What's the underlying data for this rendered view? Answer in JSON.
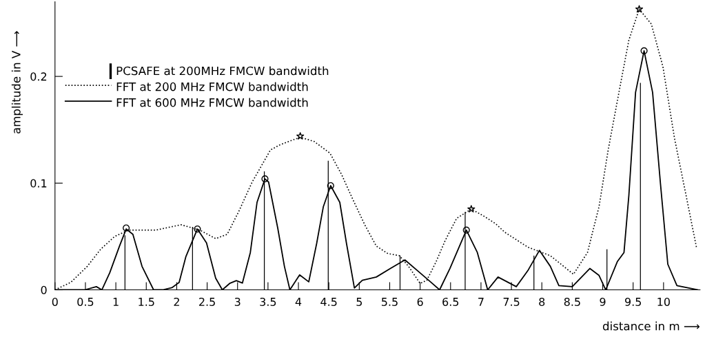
{
  "chart_data": {
    "type": "line",
    "xlabel": "distance in m ⟶",
    "ylabel": "amplitude in V ⟶",
    "xlim": [
      0,
      10.6
    ],
    "ylim": [
      0,
      0.27
    ],
    "xticks": [
      0,
      0.5,
      1,
      1.5,
      2,
      2.5,
      3,
      3.5,
      4,
      4.5,
      5,
      5.5,
      6,
      6.5,
      7,
      7.5,
      8,
      8.5,
      9,
      9.5,
      10
    ],
    "yticks": [
      0,
      0.1,
      0.2
    ],
    "legend": "top left",
    "series": [
      {
        "name": "PCSAFE at 200MHz FMCW bandwidth",
        "type": "bar",
        "color": "#000000",
        "x": [
          1.15,
          2.26,
          3.44,
          4.49,
          5.67,
          6.74,
          7.87,
          9.07,
          9.62
        ],
        "values": [
          0.051,
          0.059,
          0.111,
          0.121,
          0.032,
          0.073,
          0.032,
          0.038,
          0.194
        ]
      },
      {
        "name": "FFT at 200 MHz FMCW bandwidth",
        "line_style": "dotted",
        "color": "#000000",
        "x": [
          0,
          0.26,
          0.53,
          0.75,
          0.98,
          1.21,
          1.66,
          2.07,
          2.38,
          2.64,
          2.83,
          3.02,
          3.24,
          3.54,
          3.7,
          4.03,
          4.26,
          4.52,
          4.71,
          4.9,
          5.09,
          5.28,
          5.47,
          5.66,
          5.81,
          6.0,
          6.11,
          6.26,
          6.41,
          6.6,
          6.84,
          7.05,
          7.24,
          7.39,
          7.77,
          8.14,
          8.52,
          8.75,
          8.94,
          9.09,
          9.28,
          9.43,
          9.6,
          9.8,
          9.99,
          10.18,
          10.37,
          10.54
        ],
        "values": [
          0,
          0.007,
          0.022,
          0.038,
          0.05,
          0.056,
          0.056,
          0.061,
          0.056,
          0.048,
          0.052,
          0.0735,
          0.101,
          0.131,
          0.136,
          0.143,
          0.139,
          0.128,
          0.108,
          0.084,
          0.061,
          0.041,
          0.034,
          0.032,
          0.022,
          0.006,
          0.009,
          0.026,
          0.046,
          0.067,
          0.0757,
          0.069,
          0.062,
          0.054,
          0.04,
          0.032,
          0.0146,
          0.035,
          0.078,
          0.131,
          0.189,
          0.234,
          0.263,
          0.249,
          0.209,
          0.142,
          0.0885,
          0.04
        ]
      },
      {
        "name": "FFT at 600 MHz FMCW bandwidth",
        "line_style": "solid",
        "color": "#000000",
        "x": [
          0,
          0.49,
          0.68,
          0.77,
          0.9,
          1.06,
          1.17,
          1.28,
          1.43,
          1.62,
          1.77,
          1.92,
          2.04,
          2.15,
          2.34,
          2.49,
          2.64,
          2.75,
          2.87,
          2.98,
          3.08,
          3.21,
          3.32,
          3.45,
          3.51,
          3.66,
          3.77,
          3.86,
          4.02,
          4.17,
          4.3,
          4.41,
          4.53,
          4.68,
          4.79,
          4.92,
          5.05,
          5.28,
          5.51,
          5.75,
          5.96,
          6.18,
          6.32,
          6.49,
          6.76,
          6.94,
          7.11,
          7.28,
          7.58,
          7.77,
          7.96,
          8.14,
          8.28,
          8.5,
          8.79,
          8.94,
          9.05,
          9.24,
          9.35,
          9.43,
          9.54,
          9.68,
          9.82,
          9.95,
          10.07,
          10.22,
          10.56
        ],
        "values": [
          0,
          0,
          0.003,
          0,
          0.016,
          0.041,
          0.057,
          0.052,
          0.022,
          0,
          0,
          0.002,
          0.007,
          0.031,
          0.057,
          0.044,
          0.011,
          0,
          0.006,
          0.0086,
          0.0064,
          0.035,
          0.082,
          0.104,
          0.101,
          0.058,
          0.022,
          0,
          0.014,
          0.0075,
          0.0435,
          0.078,
          0.0976,
          0.082,
          0.0435,
          0.0017,
          0.009,
          0.012,
          0.02,
          0.028,
          0.0178,
          0.007,
          0,
          0.02,
          0.056,
          0.035,
          0,
          0.012,
          0.003,
          0.018,
          0.037,
          0.022,
          0.004,
          0.003,
          0.02,
          0.0135,
          0,
          0.0264,
          0.035,
          0.0885,
          0.185,
          0.224,
          0.185,
          0.099,
          0.024,
          0.004,
          0
        ]
      },
      {
        "type": "scatter",
        "marker": "circle",
        "color": "#000000",
        "x": [
          1.17,
          2.34,
          3.45,
          4.53,
          6.76,
          9.68
        ],
        "values": [
          0.058,
          0.057,
          0.104,
          0.0976,
          0.056,
          0.224
        ]
      },
      {
        "type": "scatter",
        "marker": "star",
        "color": "#000000",
        "x": [
          4.03,
          6.84,
          9.6
        ],
        "values": [
          0.144,
          0.0757,
          0.263
        ]
      }
    ]
  }
}
